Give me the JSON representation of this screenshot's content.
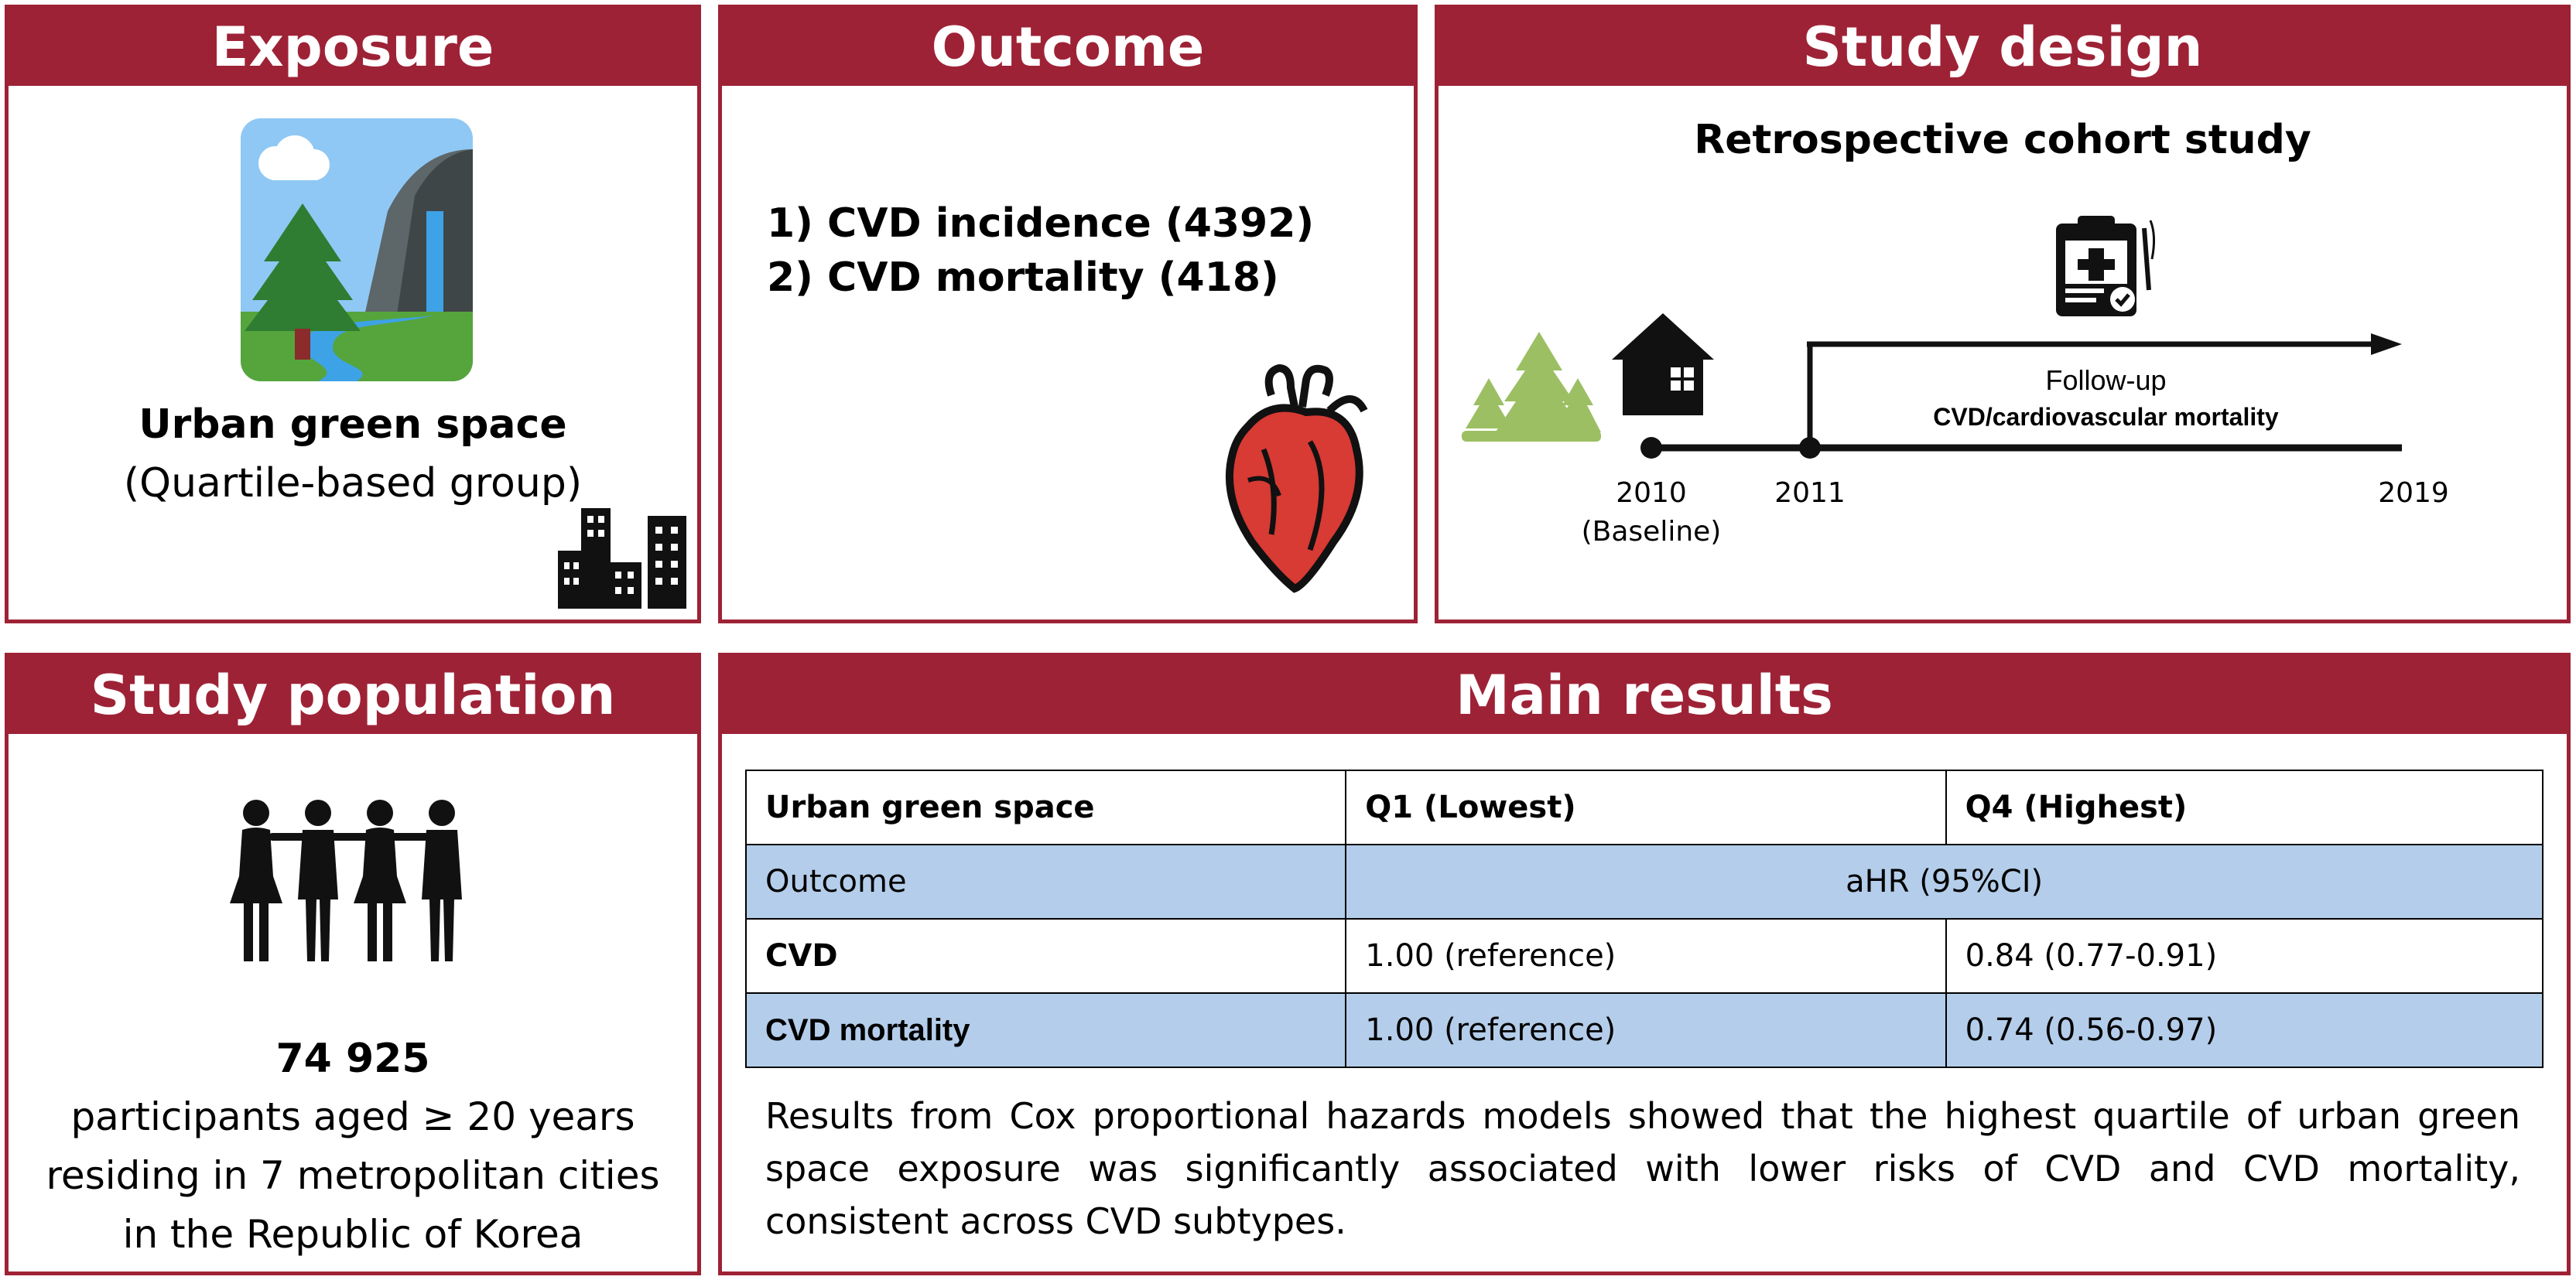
{
  "exposure": {
    "header": "Exposure",
    "title": "Urban green space",
    "subtitle": "(Quartile-based group)"
  },
  "outcome": {
    "header": "Outcome",
    "items": [
      "1) CVD incidence (4392)",
      "2) CVD mortality (418)"
    ]
  },
  "design": {
    "header": "Study design",
    "title": "Retrospective cohort study",
    "followup_label": "Follow-up",
    "followup_detail": "CVD/cardiovascular mortality",
    "year_2010": "2010",
    "baseline": "(Baseline)",
    "year_2011": "2011",
    "year_2019": "2019"
  },
  "population": {
    "header": "Study population",
    "count": "74 925",
    "lines": [
      "participants aged ≥ 20 years",
      "residing in 7 metropolitan cities",
      "in the Republic of  Korea"
    ]
  },
  "results": {
    "header": "Main results",
    "table": {
      "head": [
        "Urban green space",
        "Q1 (Lowest)",
        "Q4 (Highest)"
      ],
      "measure_label": "Outcome",
      "measure": "aHR (95%CI)",
      "rows": [
        {
          "name": "CVD",
          "q1": "1.00 (reference)",
          "q4": "0.84 (0.77-0.91)"
        },
        {
          "name": "CVD mortality",
          "q1": "1.00 (reference)",
          "q4": "0.74 (0.56-0.97)"
        }
      ]
    },
    "summary": "Results from Cox proportional hazards models showed that the highest quartile of urban green space exposure was significantly associated with lower risks of CVD and CVD mortality, consistent across CVD subtypes."
  },
  "colors": {
    "header": "#9e2236",
    "table_highlight": "#b4cdea",
    "tree_green": "#9cbf63"
  },
  "icons": [
    "nature-landscape-icon",
    "city-buildings-icon",
    "heart-icon",
    "trees-icon",
    "house-icon",
    "medical-clipboard-icon",
    "people-icon"
  ]
}
